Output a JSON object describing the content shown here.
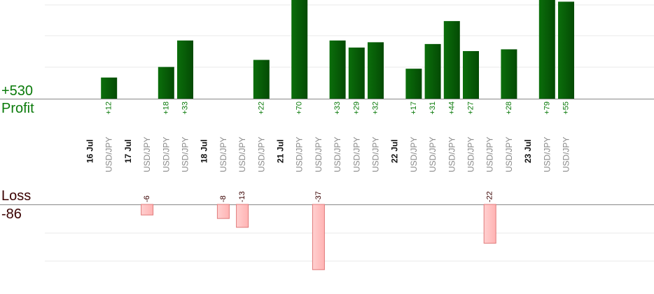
{
  "summary": {
    "profit_total": "+530",
    "profit_label": "Profit",
    "loss_label": "Loss",
    "loss_total": "-86"
  },
  "colors": {
    "profit_bar": "#0b6e0b",
    "profit_bar_dark": "#044a04",
    "profit_text": "#0a7a0a",
    "loss_bar": "#ffb3b3",
    "loss_bar_border": "#e07a7a",
    "loss_text": "#3a0000",
    "day_text": "#111111",
    "pair_text": "#8a8a8a",
    "grid": "#e8e8e8",
    "baseline": "#888888"
  },
  "chart_data": {
    "type": "bar",
    "grid": true,
    "days": [
      "16 Jul",
      "17 Jul",
      "18 Jul",
      "21 Jul",
      "22 Jul",
      "23 Jul"
    ],
    "columns": [
      {
        "kind": "day",
        "label": "16 Jul"
      },
      {
        "kind": "trade",
        "pair": "USD/JPY",
        "value": 12,
        "label": "+12"
      },
      {
        "kind": "day",
        "label": "17 Jul"
      },
      {
        "kind": "trade",
        "pair": "USD/JPY",
        "value": -6,
        "label": "-6"
      },
      {
        "kind": "trade",
        "pair": "USD/JPY",
        "value": 18,
        "label": "+18"
      },
      {
        "kind": "trade",
        "pair": "USD/JPY",
        "value": 33,
        "label": "+33"
      },
      {
        "kind": "day",
        "label": "18 Jul"
      },
      {
        "kind": "trade",
        "pair": "USD/JPY",
        "value": -8,
        "label": "-8"
      },
      {
        "kind": "trade",
        "pair": "USD/JPY",
        "value": -13,
        "label": "-13"
      },
      {
        "kind": "trade",
        "pair": "USD/JPY",
        "value": 22,
        "label": "+22"
      },
      {
        "kind": "day",
        "label": "21 Jul"
      },
      {
        "kind": "trade",
        "pair": "USD/JPY",
        "value": 70,
        "label": "+70"
      },
      {
        "kind": "trade",
        "pair": "USD/JPY",
        "value": -37,
        "label": "-37"
      },
      {
        "kind": "trade",
        "pair": "USD/JPY",
        "value": 33,
        "label": "+33"
      },
      {
        "kind": "trade",
        "pair": "USD/JPY",
        "value": 29,
        "label": "+29"
      },
      {
        "kind": "trade",
        "pair": "USD/JPY",
        "value": 32,
        "label": "+32"
      },
      {
        "kind": "day",
        "label": "22 Jul"
      },
      {
        "kind": "trade",
        "pair": "USD/JPY",
        "value": 17,
        "label": "+17"
      },
      {
        "kind": "trade",
        "pair": "USD/JPY",
        "value": 31,
        "label": "+31"
      },
      {
        "kind": "trade",
        "pair": "USD/JPY",
        "value": 44,
        "label": "+44"
      },
      {
        "kind": "trade",
        "pair": "USD/JPY",
        "value": 27,
        "label": "+27"
      },
      {
        "kind": "trade",
        "pair": "USD/JPY",
        "value": -22,
        "label": "-22"
      },
      {
        "kind": "trade",
        "pair": "USD/JPY",
        "value": 28,
        "label": "+28"
      },
      {
        "kind": "day",
        "label": "23 Jul"
      },
      {
        "kind": "trade",
        "pair": "USD/JPY",
        "value": 79,
        "label": "+79"
      },
      {
        "kind": "trade",
        "pair": "USD/JPY",
        "value": 55,
        "label": "+55"
      }
    ]
  }
}
